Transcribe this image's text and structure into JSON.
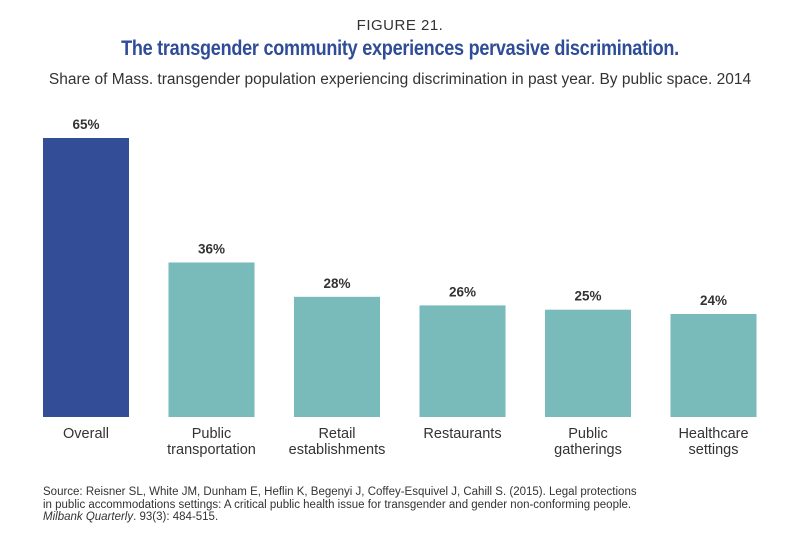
{
  "figure_label": "FIGURE 21.",
  "colors": {
    "title": "#2e4c97",
    "highlight_bar": "#334e97",
    "bar": "#79baba",
    "text": "#333333"
  },
  "source": {
    "prefix": "Source: Reisner SL, White JM, Dunham E, Heflin K, Begenyi J, Coffey-Esquivel J, Cahill S. (2015). Legal protections in public accommodations settings: A critical public health issue for transgender and gender non-conforming people. ",
    "journal": "Milbank Quarterly",
    "suffix": ". 93(3): 484-515."
  },
  "chart_data": {
    "type": "bar",
    "title": "The transgender community experiences pervasive discrimination.",
    "subtitle": "Share of Mass. transgender population experiencing discrimination in past year. By public space. 2014",
    "categories": [
      [
        "Overall"
      ],
      [
        "Public",
        "transportation"
      ],
      [
        "Retail",
        "establishments"
      ],
      [
        "Restaurants"
      ],
      [
        "Public",
        "gatherings"
      ],
      [
        "Healthcare",
        "settings"
      ]
    ],
    "values": [
      65,
      36,
      28,
      26,
      25,
      24
    ],
    "value_labels": [
      "65%",
      "36%",
      "28%",
      "26%",
      "25%",
      "24%"
    ],
    "highlight_index": 0,
    "xlabel": "",
    "ylabel": "",
    "ylim": [
      0,
      65
    ],
    "grid": false
  }
}
